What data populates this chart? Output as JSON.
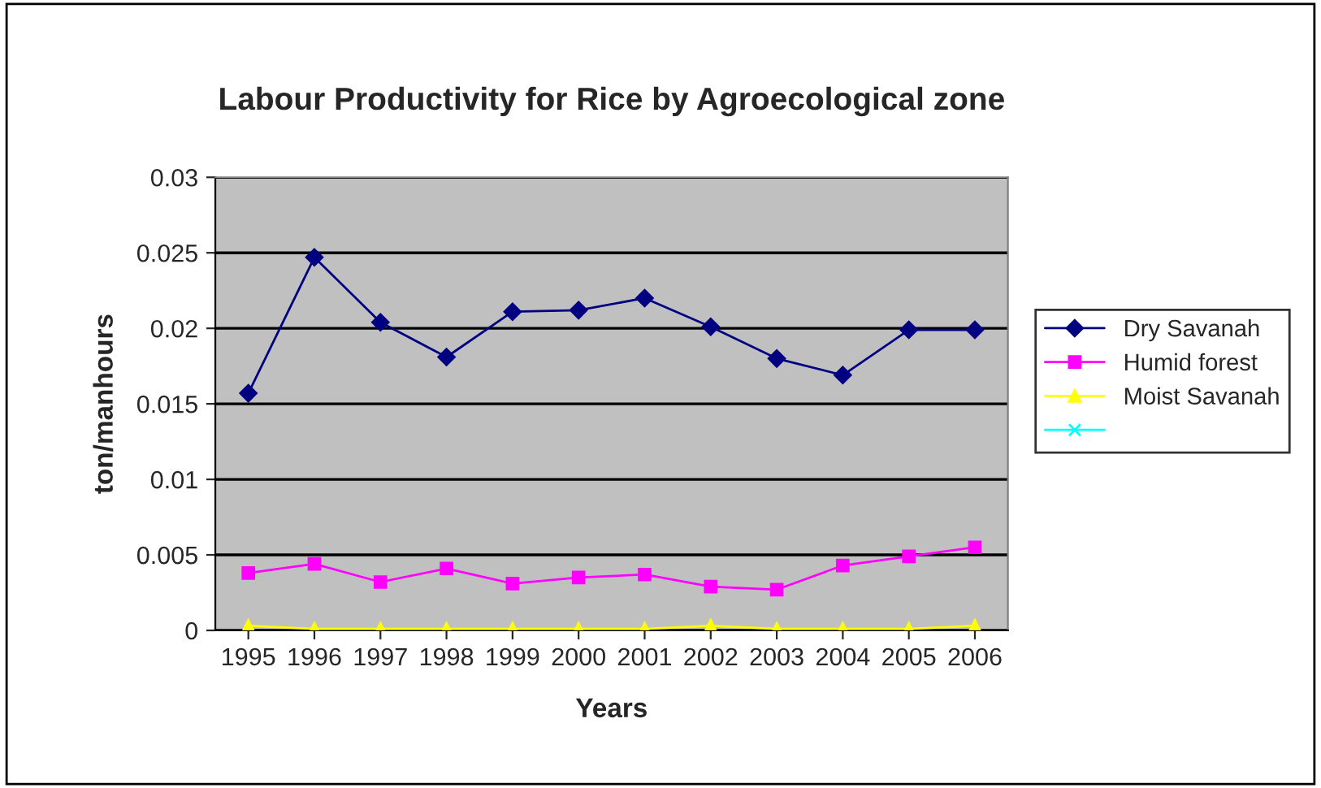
{
  "chart_data": {
    "type": "line",
    "title": "Labour Productivity for Rice by Agroecological zone",
    "xlabel": "Years",
    "ylabel": "ton/manhours",
    "categories": [
      "1995",
      "1996",
      "1997",
      "1998",
      "1999",
      "2000",
      "2001",
      "2002",
      "2003",
      "2004",
      "2005",
      "2006"
    ],
    "series": [
      {
        "name": "Dry Savanah",
        "color": "#000080",
        "marker": "diamond",
        "values": [
          0.0157,
          0.0247,
          0.0204,
          0.0181,
          0.0211,
          0.0212,
          0.022,
          0.0201,
          0.018,
          0.0169,
          0.0199,
          0.0199
        ]
      },
      {
        "name": "Humid forest",
        "color": "#ff00ff",
        "marker": "square",
        "values": [
          0.0038,
          0.0044,
          0.0032,
          0.0041,
          0.0031,
          0.0035,
          0.0037,
          0.0029,
          0.0027,
          0.0043,
          0.0049,
          0.0055
        ]
      },
      {
        "name": "Moist Savanah",
        "color": "#ffff00",
        "marker": "triangle",
        "values": [
          0.0003,
          0.0001,
          0.0001,
          0.0001,
          0.0001,
          0.0001,
          0.0001,
          0.0003,
          0.0001,
          0.0001,
          0.0001,
          0.0003
        ]
      },
      {
        "color": "#00ffff",
        "marker": "cross",
        "values": [
          null,
          null,
          null,
          null,
          null,
          null,
          null,
          null,
          null,
          null,
          null,
          null
        ]
      }
    ],
    "ylim": [
      0,
      0.03
    ],
    "yticks": [
      0,
      0.005,
      0.01,
      0.015,
      0.02,
      0.025,
      0.03
    ],
    "grid": "y",
    "legend": "right"
  }
}
